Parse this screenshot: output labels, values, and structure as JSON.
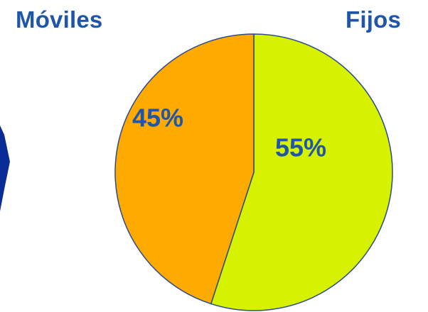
{
  "chart_data": {
    "type": "pie",
    "slices": [
      {
        "label": "Fijos",
        "value": 55,
        "data_label": "55%",
        "color": "#D7F200"
      },
      {
        "label": "Móviles",
        "value": 45,
        "data_label": "45%",
        "color": "#FFAA00"
      }
    ],
    "start": "top",
    "direction": "clockwise",
    "outline_color": "#2C4A8C",
    "label_color": "#1F56A8"
  },
  "titles": {
    "left": "Móviles",
    "right": "Fijos"
  },
  "decor": {
    "side_shape_color": "#0A2C96"
  }
}
